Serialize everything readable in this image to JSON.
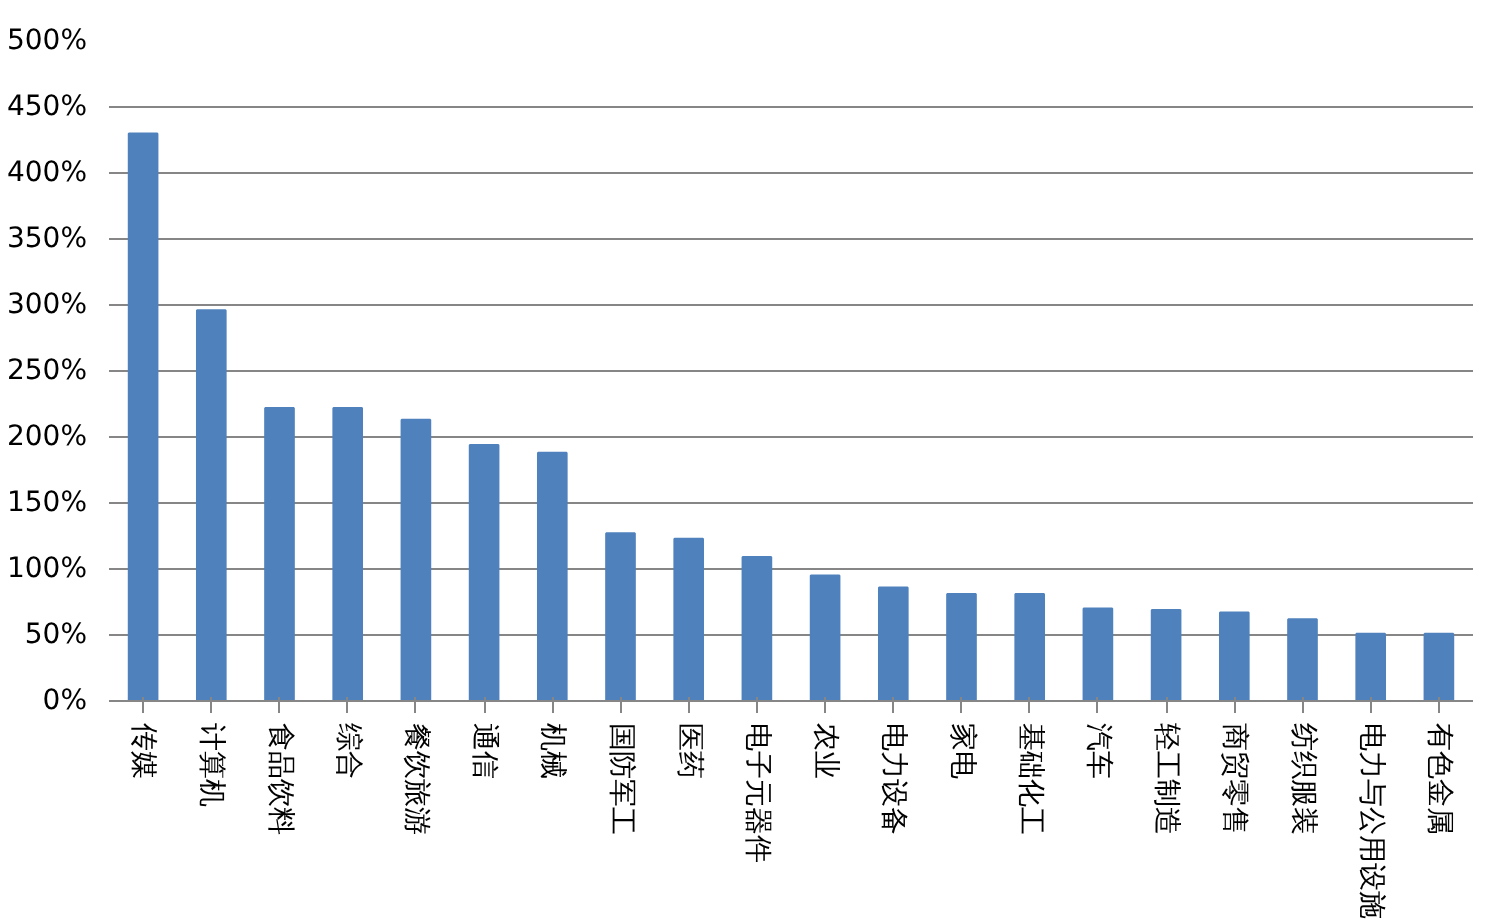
{
  "chart_data": {
    "type": "bar",
    "categories": [
      "传媒",
      "计算机",
      "食品饮料",
      "综合",
      "餐饮旅游",
      "通信",
      "机械",
      "国防军工",
      "医药",
      "电子元器件",
      "农业",
      "电力设备",
      "家电",
      "基础化工",
      "汽车",
      "轻工制造",
      "商贸零售",
      "纺织服装",
      "电力与公用设施",
      "有色金属"
    ],
    "values": [
      430,
      296,
      222,
      222,
      213,
      194,
      188,
      127,
      123,
      109,
      95,
      86,
      81,
      81,
      70,
      69,
      67,
      62,
      51,
      51
    ],
    "color": "#4f81bd",
    "ylim": [
      0,
      500
    ],
    "yticks": [
      {
        "value": 0,
        "label": "0%"
      },
      {
        "value": 50,
        "label": "50%"
      },
      {
        "value": 100,
        "label": "100%"
      },
      {
        "value": 150,
        "label": "150%"
      },
      {
        "value": 200,
        "label": "200%"
      },
      {
        "value": 250,
        "label": "250%"
      },
      {
        "value": 300,
        "label": "300%"
      },
      {
        "value": 350,
        "label": "350%"
      },
      {
        "value": 400,
        "label": "400%"
      },
      {
        "value": 450,
        "label": "450%"
      },
      {
        "value": 500,
        "label": "500%"
      }
    ],
    "grid": "y"
  }
}
